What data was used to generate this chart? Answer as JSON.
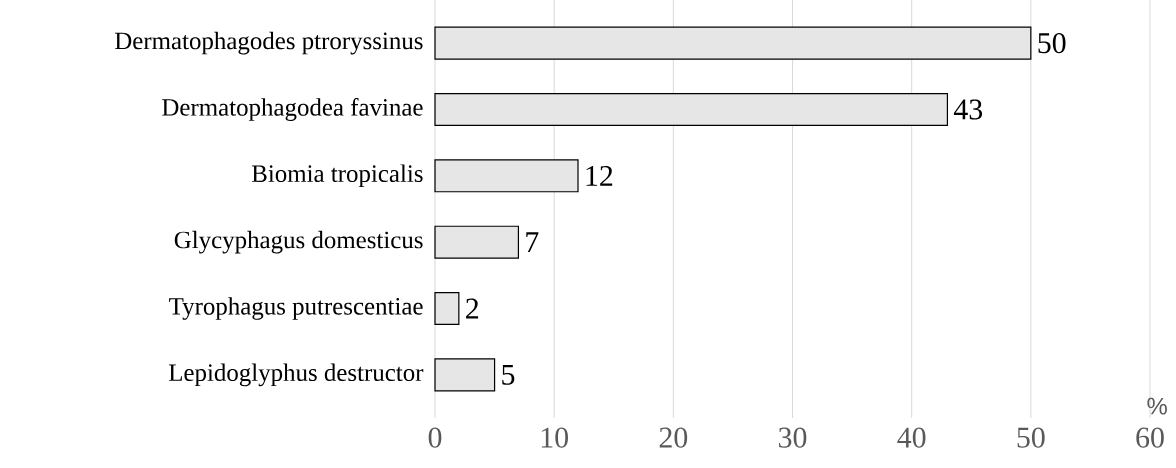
{
  "chart_data": {
    "type": "bar",
    "orientation": "horizontal",
    "categories": [
      "Dermatophagodes ptroryssinus",
      "Dermatophagodea favinae",
      "Biomia tropicalis",
      "Glycyphagus domesticus",
      "Tyrophagus putrescentiae",
      "Lepidoglyphus destructor"
    ],
    "values": [
      50,
      43,
      12,
      7,
      2,
      5
    ],
    "color": "#e6e6e6",
    "xlim": [
      0,
      60
    ],
    "xticks": [
      0,
      10,
      20,
      30,
      40,
      50,
      60
    ],
    "xlabel": "%",
    "grid": "x",
    "data_labels": true
  }
}
